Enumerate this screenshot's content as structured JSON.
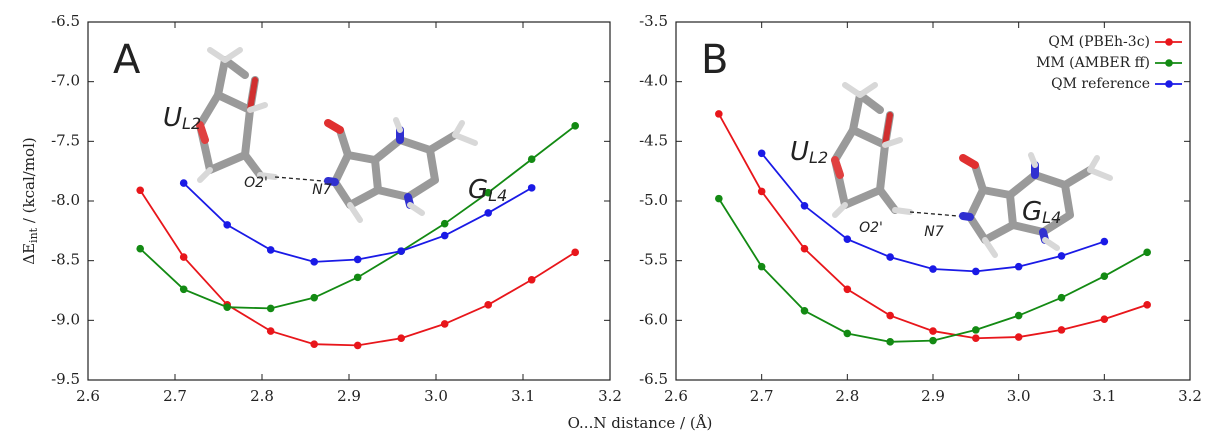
{
  "xlabel": "O...N distance / (Å)",
  "ylabel": {
    "main": "ΔE",
    "sub": "int",
    "tail": " / (kcal/mol)"
  },
  "chart_data": [
    {
      "type": "line",
      "panel_label": "A",
      "molecule_labels": [
        {
          "text": "U",
          "sub": "L2"
        },
        {
          "text": "G",
          "sub": "L4"
        }
      ],
      "atom_labels": [
        "O2'",
        "N7"
      ],
      "xlim": [
        2.6,
        3.2
      ],
      "ylim": [
        -9.5,
        -6.5
      ],
      "xticks": [
        2.6,
        2.7,
        2.8,
        2.9,
        {
          "value": 3.0,
          "label": "3.0"
        },
        3.1,
        3.2
      ],
      "yticks": [
        -6.5,
        {
          "value": -7,
          "label": "-7.0"
        },
        -7.5,
        {
          "value": -8,
          "label": "-8.0"
        },
        -8.5,
        {
          "value": -9,
          "label": "-9.0"
        },
        -9.5
      ],
      "series": [
        {
          "name": "QM (PBEh-3c)",
          "color": "#e8161b",
          "x": [
            2.66,
            2.71,
            2.76,
            2.81,
            2.86,
            2.91,
            2.96,
            3.01,
            3.06,
            3.11,
            3.16
          ],
          "values": [
            -7.91,
            -8.47,
            -8.87,
            -9.09,
            -9.2,
            -9.21,
            -9.15,
            -9.03,
            -8.87,
            -8.66,
            -8.43
          ]
        },
        {
          "name": "MM (AMBER ff)",
          "color": "#138a13",
          "x": [
            2.66,
            2.71,
            2.76,
            2.81,
            2.86,
            2.91,
            2.96,
            3.01,
            3.06,
            3.11,
            3.16
          ],
          "values": [
            -8.4,
            -8.74,
            -8.89,
            -8.9,
            -8.81,
            -8.64,
            -8.42,
            -8.19,
            -7.93,
            -7.65,
            -7.37
          ]
        },
        {
          "name": "QM reference",
          "color": "#1a1ae6",
          "x": [
            2.71,
            2.76,
            2.81,
            2.86,
            2.91,
            2.96,
            3.01,
            3.06,
            3.11
          ],
          "values": [
            -7.85,
            -8.2,
            -8.41,
            -8.51,
            -8.49,
            -8.42,
            -8.29,
            -8.1,
            -7.89
          ]
        }
      ]
    },
    {
      "type": "line",
      "panel_label": "B",
      "legend": "upper right",
      "molecule_labels": [
        {
          "text": "U",
          "sub": "L2"
        },
        {
          "text": "G",
          "sub": "L4"
        }
      ],
      "atom_labels": [
        "O2'",
        "N7"
      ],
      "xlim": [
        2.6,
        3.2
      ],
      "ylim": [
        -6.5,
        -3.5
      ],
      "xticks": [
        2.6,
        2.7,
        2.8,
        2.9,
        {
          "value": 3.0,
          "label": "3.0"
        },
        3.1,
        3.2
      ],
      "yticks": [
        -3.5,
        {
          "value": -4,
          "label": "-4.0"
        },
        -4.5,
        {
          "value": -5,
          "label": "-5.0"
        },
        -5.5,
        {
          "value": -6,
          "label": "-6.0"
        },
        -6.5
      ],
      "series": [
        {
          "name": "QM (PBEh-3c)",
          "color": "#e8161b",
          "x": [
            2.65,
            2.7,
            2.75,
            2.8,
            2.85,
            2.9,
            2.95,
            3.0,
            3.05,
            3.1,
            3.15
          ],
          "values": [
            -4.27,
            -4.92,
            -5.4,
            -5.74,
            -5.96,
            -6.09,
            -6.15,
            -6.14,
            -6.08,
            -5.99,
            -5.87
          ]
        },
        {
          "name": "MM (AMBER ff)",
          "color": "#138a13",
          "x": [
            2.65,
            2.7,
            2.75,
            2.8,
            2.85,
            2.9,
            2.95,
            3.0,
            3.05,
            3.1,
            3.15
          ],
          "values": [
            -4.98,
            -5.55,
            -5.92,
            -6.11,
            -6.18,
            -6.17,
            -6.08,
            -5.96,
            -5.81,
            -5.63,
            -5.43
          ]
        },
        {
          "name": "QM reference",
          "color": "#1a1ae6",
          "x": [
            2.7,
            2.75,
            2.8,
            2.85,
            2.9,
            2.95,
            3.0,
            3.05,
            3.1
          ],
          "values": [
            -4.6,
            -5.04,
            -5.32,
            -5.47,
            -5.57,
            -5.59,
            -5.55,
            -5.46,
            -5.34
          ]
        }
      ]
    }
  ]
}
